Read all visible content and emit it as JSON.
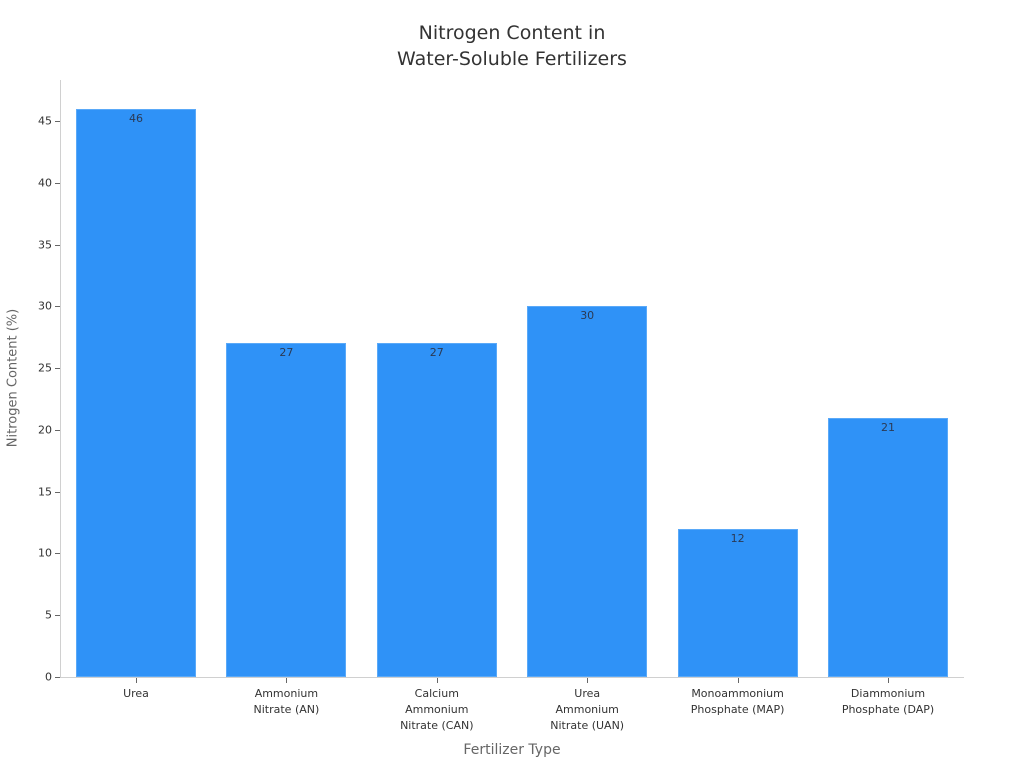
{
  "chart_data": {
    "type": "bar",
    "title": "Nitrogen Content in\nWater-Soluble Fertilizers",
    "title_lines": [
      "Nitrogen Content in",
      "Water-Soluble Fertilizers"
    ],
    "xlabel": "Fertilizer Type",
    "ylabel": "Nitrogen Content (%)",
    "categories": [
      "Urea",
      "Ammonium Nitrate (AN)",
      "Calcium Ammonium Nitrate (CAN)",
      "Urea Ammonium Nitrate (UAN)",
      "Monoammonium Phosphate (MAP)",
      "Diammonium Phosphate (DAP)"
    ],
    "category_label_lines": [
      "Urea",
      "Ammonium\nNitrate (AN)",
      "Calcium\nAmmonium\nNitrate (CAN)",
      "Urea\nAmmonium\nNitrate (UAN)",
      "Monoammonium\nPhosphate (MAP)",
      "Diammonium\nPhosphate (DAP)"
    ],
    "values": [
      46,
      27,
      27,
      30,
      12,
      21
    ],
    "data_labels": [
      "46",
      "27",
      "27",
      "30",
      "12",
      "21"
    ],
    "ylim": [
      0,
      48
    ],
    "yticks": [
      0,
      5,
      10,
      15,
      20,
      25,
      30,
      35,
      40,
      45
    ],
    "ytick_labels": [
      "0",
      "5",
      "10",
      "15",
      "20",
      "25",
      "30",
      "35",
      "40",
      "45"
    ],
    "grid": false,
    "legend": null,
    "bar_color": "#2f92f7"
  }
}
